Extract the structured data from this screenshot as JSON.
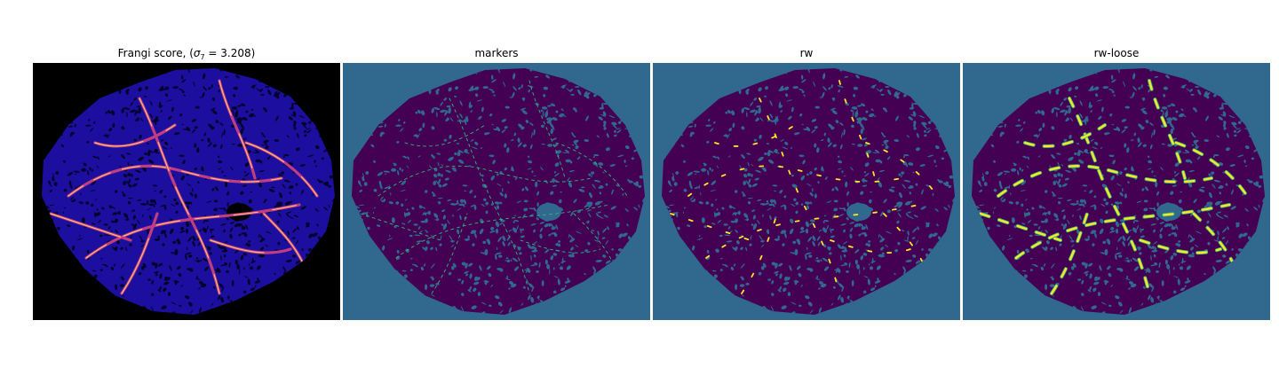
{
  "chart_data": [
    {
      "type": "heatmap",
      "title": "Frangi score, ($\\sigma_7 = 3.208$)",
      "title_prefix": "Frangi score, (",
      "title_sigma": "σ",
      "title_sigma_sub": "7",
      "title_suffix": " = 3.208)",
      "colormap": "magma",
      "colors": {
        "background": "#000000",
        "tissue": "#1c0fa0",
        "tissue_dark": "#05032e",
        "vessel_mid": "#c23d80",
        "vessel_high": "#fcbc74"
      }
    },
    {
      "type": "heatmap",
      "title": "markers",
      "colormap": "viridis",
      "colors": {
        "background": "#31688e",
        "tissue": "#440154",
        "marker": "#35b779"
      }
    },
    {
      "type": "heatmap",
      "title": "rw",
      "colormap": "viridis",
      "colors": {
        "background": "#31688e",
        "tissue": "#440154",
        "vessel": "#fde725",
        "vessel_edge": "#35b779"
      }
    },
    {
      "type": "heatmap",
      "title": "rw-loose",
      "colormap": "viridis",
      "colors": {
        "background": "#31688e",
        "tissue": "#440154",
        "vessel": "#fde725",
        "vessel_edge": "#35b779"
      }
    }
  ]
}
